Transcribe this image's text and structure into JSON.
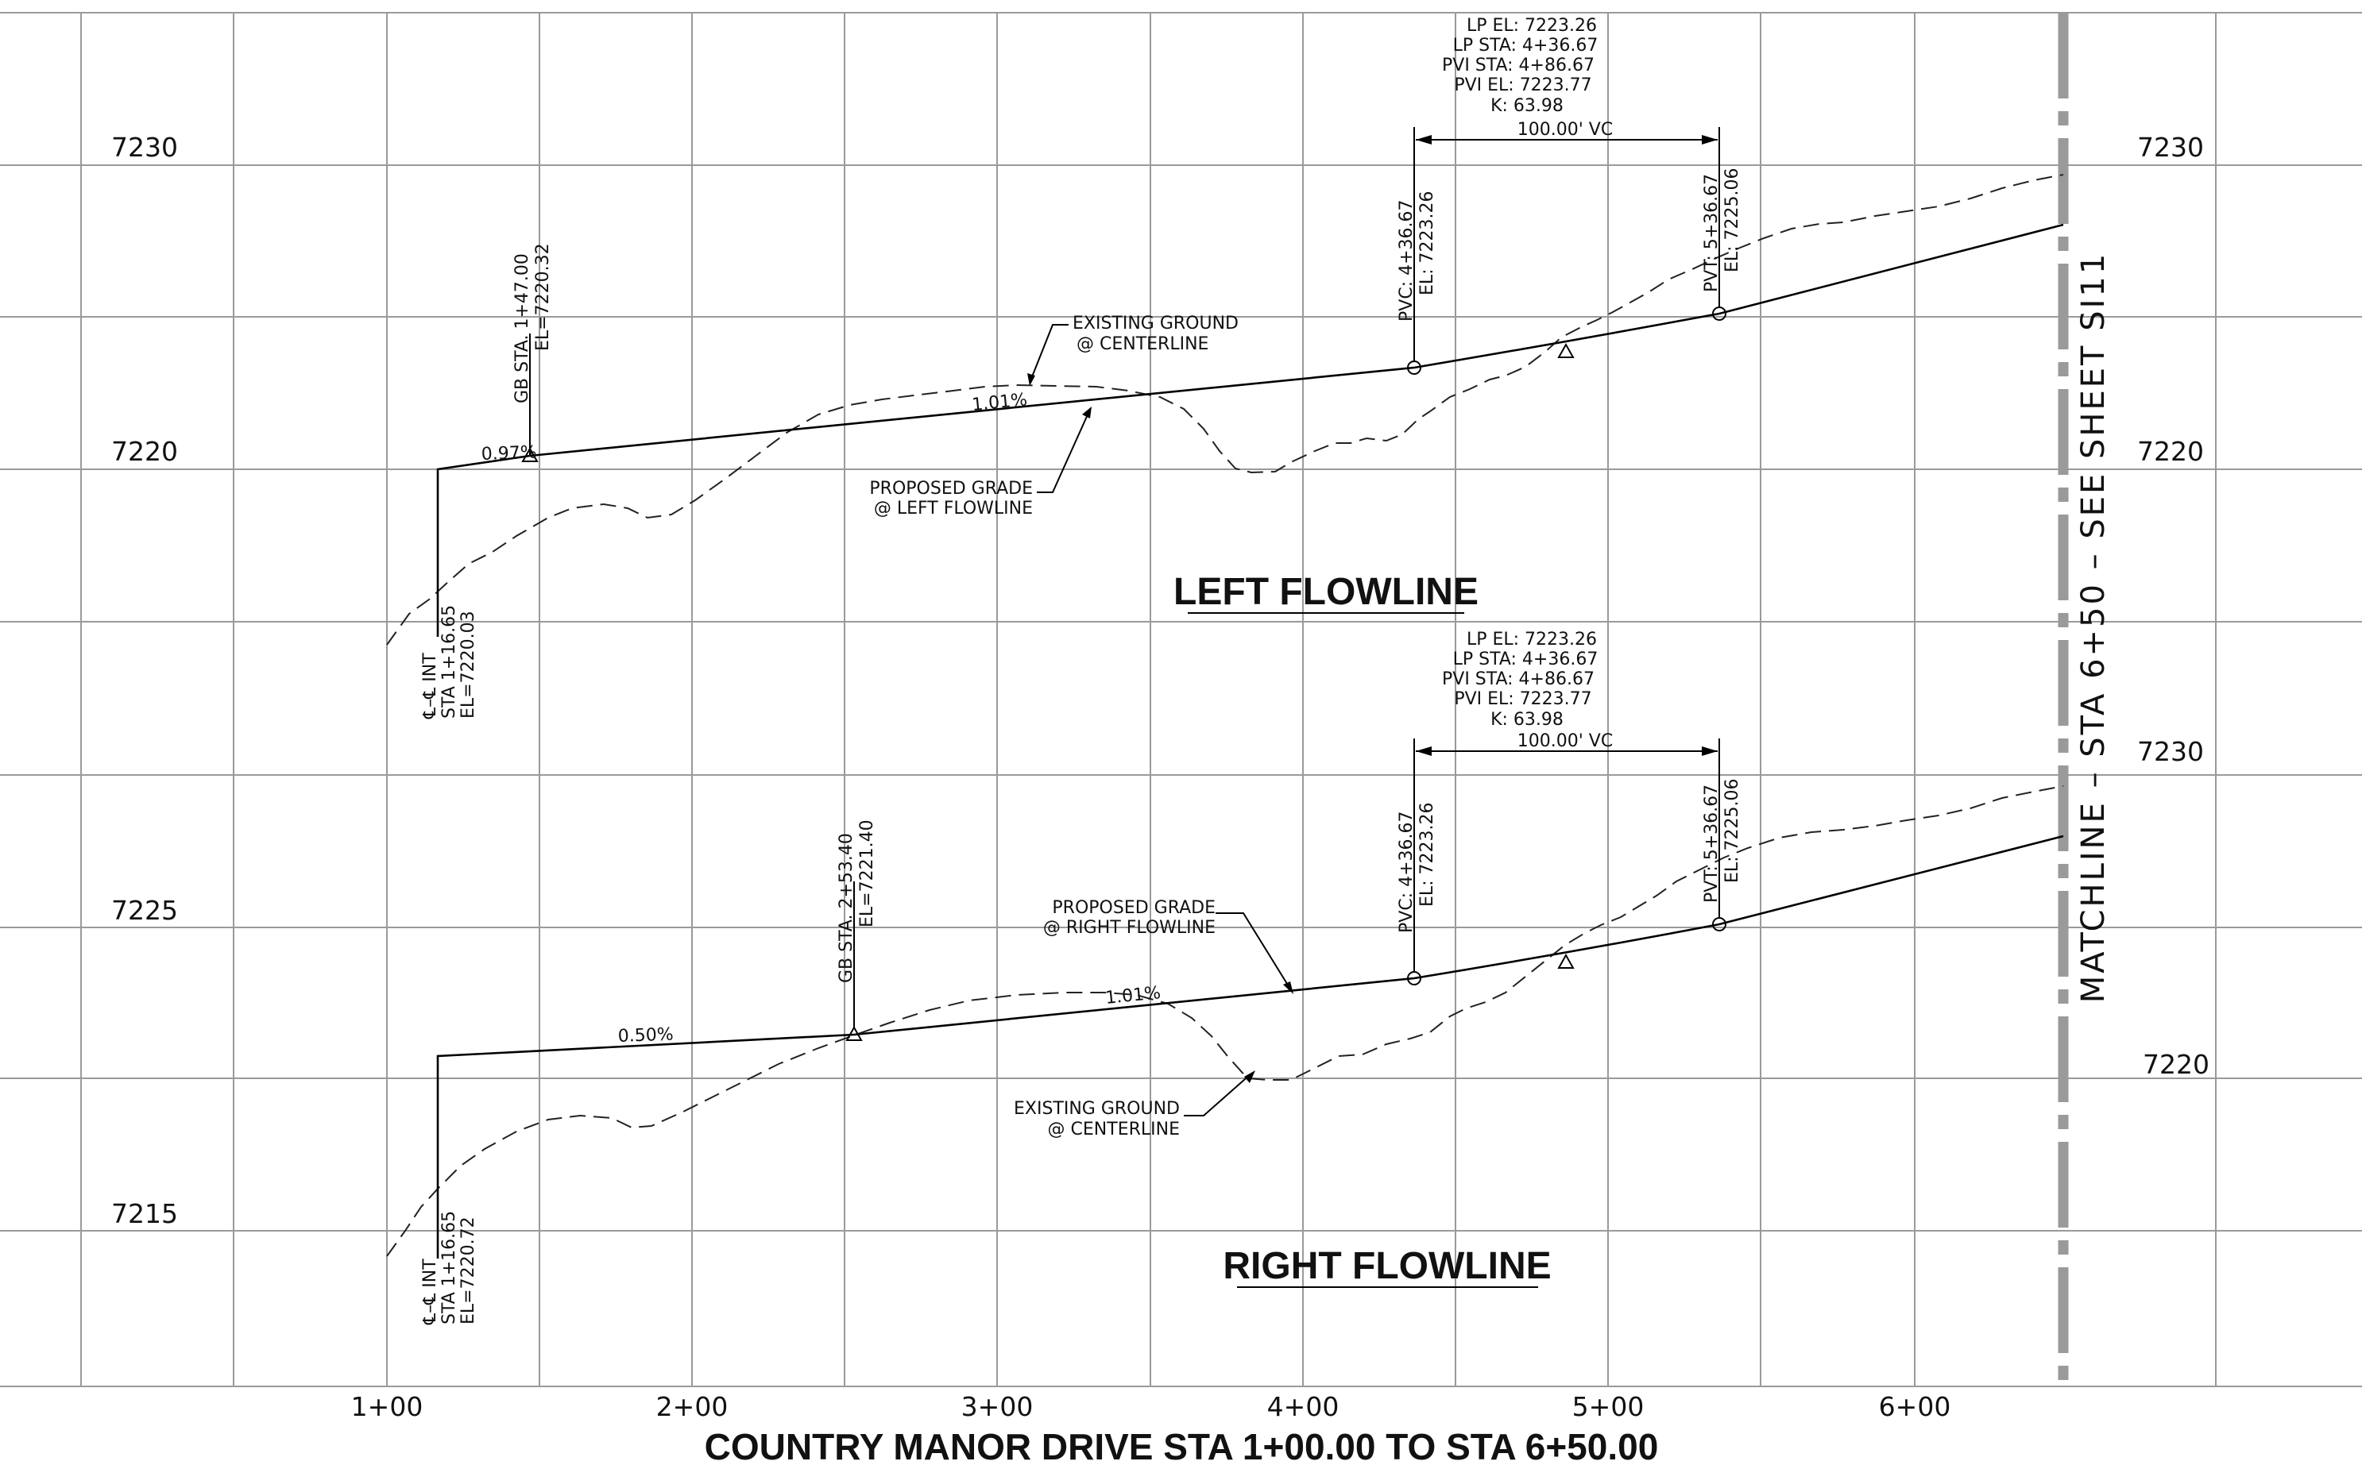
{
  "elevation_labels": {
    "left_top_7230": "7230",
    "left_top_7220": "7220",
    "left_bot_7225": "7225",
    "left_bot_7215": "7215",
    "right_top_7230": "7230",
    "right_top_7220": "7220",
    "right_bot_7230": "7230",
    "right_bot_7220": "7220"
  },
  "stations": [
    "1+00",
    "2+00",
    "3+00",
    "4+00",
    "5+00",
    "6+00"
  ],
  "drawing_title": "COUNTRY MANOR DRIVE STA 1+00.00 TO STA 6+50.00",
  "matchline": "MATCHLINE – STA 6+50 – SEE SHEET SI11",
  "left_profile": {
    "title": "LEFT FLOWLINE",
    "curve_data": {
      "lp_el": "LP EL:  7223.26",
      "lp_sta": "LP STA:  4+36.67",
      "pvi_sta": "PVI STA:  4+86.67",
      "pvi_el": "PVI EL:  7223.77",
      "k": "K: 63.98"
    },
    "vc_length": "100.00' VC",
    "pvc_sta": "PVC: 4+36.67",
    "pvc_el": "EL: 7223.26",
    "pvt_sta": "PVT: 5+36.67",
    "pvt_el": "EL: 7225.06",
    "gb_sta": "GB STA. 1+47.00",
    "gb_el": "EL=7220.32",
    "int_l1": "℄–℄ INT",
    "int_l2": "STA 1+16.65",
    "int_l3": "EL=7220.03",
    "grade_start": "0.97%",
    "grade_main": "1.01%",
    "existing_l1": "EXISTING GROUND",
    "existing_l2": "@ CENTERLINE",
    "proposed_l1": "PROPOSED GRADE",
    "proposed_l2": "@ LEFT FLOWLINE"
  },
  "right_profile": {
    "title": "RIGHT FLOWLINE",
    "curve_data": {
      "lp_el": "LP EL:  7223.26",
      "lp_sta": "LP STA:  4+36.67",
      "pvi_sta": "PVI STA:  4+86.67",
      "pvi_el": "PVI EL:  7223.77",
      "k": "K: 63.98"
    },
    "vc_length": "100.00' VC",
    "pvc_sta": "PVC: 4+36.67",
    "pvc_el": "EL: 7223.26",
    "pvt_sta": "PVT: 5+36.67",
    "pvt_el": "EL: 7225.06",
    "gb_sta": "GB STA. 2+53.40",
    "gb_el": "EL=7221.40",
    "int_l1": "℄–℄ INT",
    "int_l2": "STA 1+16.65",
    "int_l3": "EL=7220.72",
    "grade_start": "0.50%",
    "grade_main": "1.01%",
    "existing_l1": "EXISTING GROUND",
    "existing_l2": "@ CENTERLINE",
    "proposed_l1": "PROPOSED GRADE",
    "proposed_l2": "@ RIGHT FLOWLINE"
  }
}
